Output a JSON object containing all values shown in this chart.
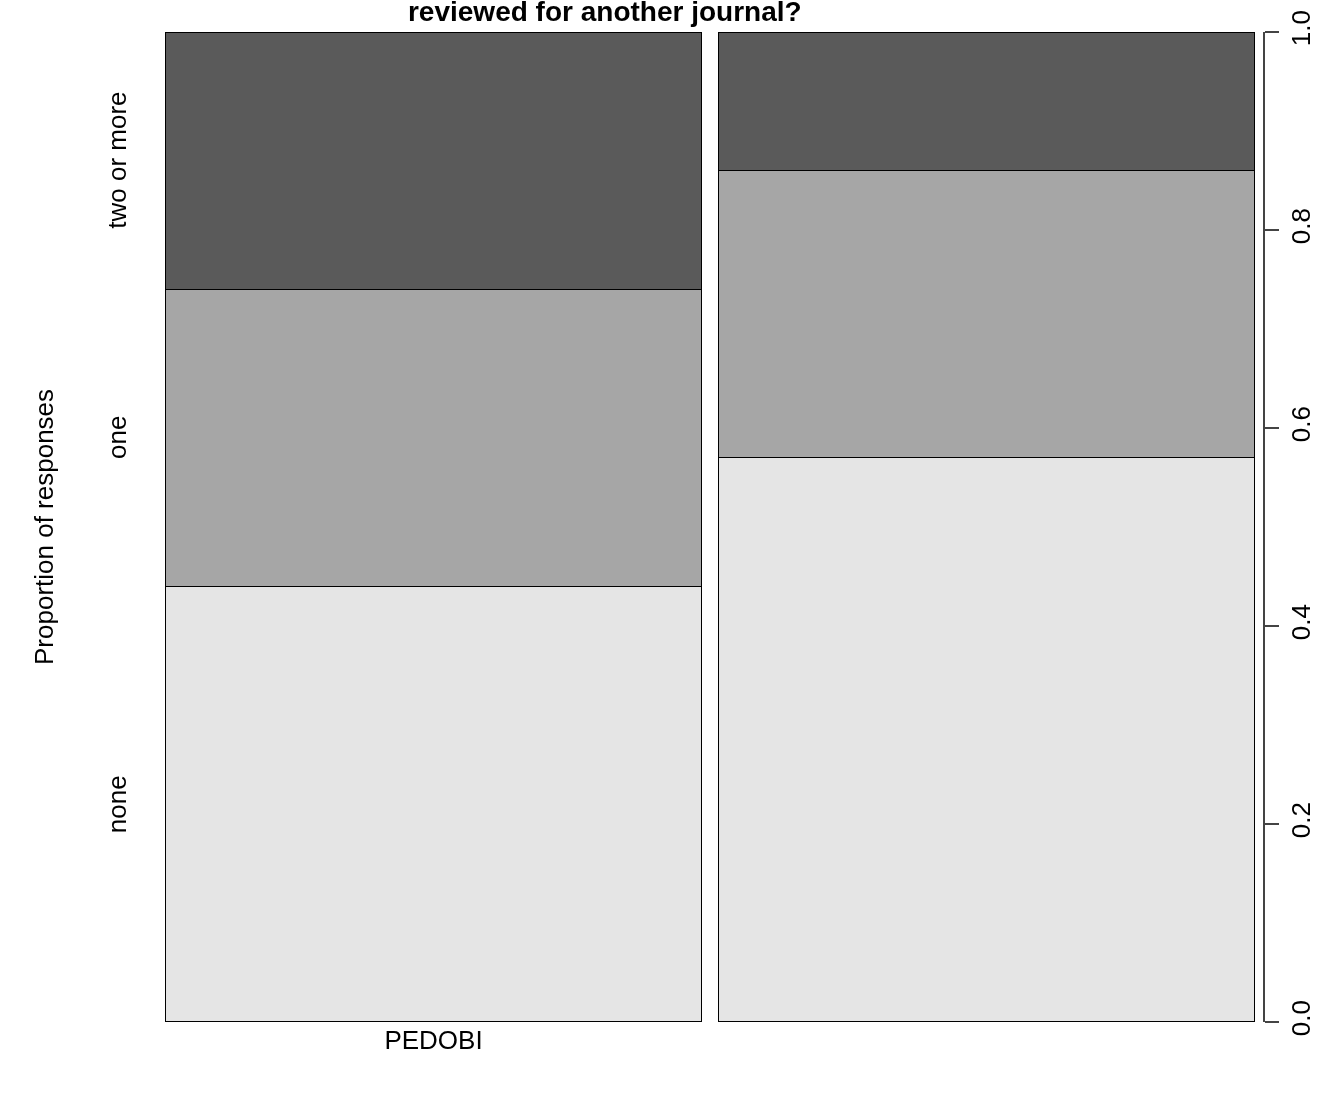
{
  "chart_data": {
    "type": "bar",
    "stacked": true,
    "title": "reviewed for another journal?",
    "ylabel": "Proportion of responses",
    "categories": [
      "PEDOBI",
      null
    ],
    "series": [
      {
        "name": "none",
        "color": "#e5e5e5",
        "values": [
          0.44,
          0.57
        ]
      },
      {
        "name": "one",
        "color": "#a6a6a6",
        "values": [
          0.3,
          0.29
        ]
      },
      {
        "name": "two or more",
        "color": "#5a5a5a",
        "values": [
          0.26,
          0.14
        ]
      }
    ],
    "ylim": [
      0,
      1
    ],
    "yticks": [
      {
        "value": 0,
        "label": "0.0"
      },
      0.2,
      0.4,
      0.6,
      0.8,
      {
        "value": 1,
        "label": "1.0"
      }
    ],
    "grid": false,
    "legend": false
  }
}
